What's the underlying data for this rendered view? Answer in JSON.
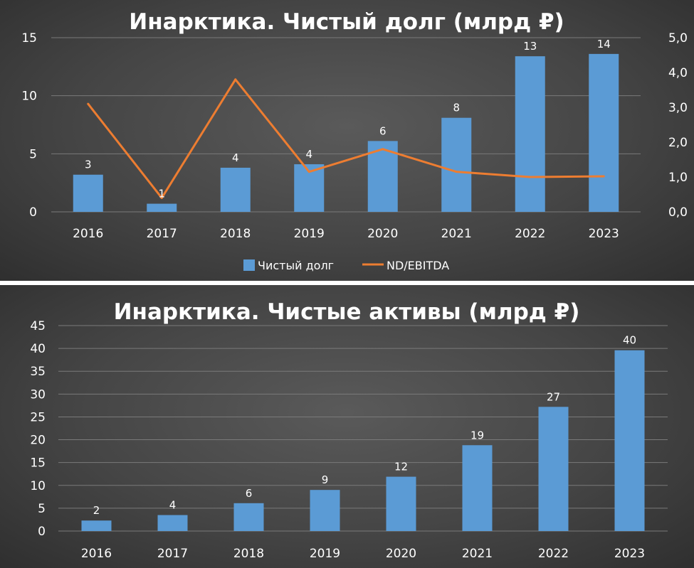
{
  "colors": {
    "bar": "#5b9bd5",
    "line": "#ed7d31",
    "text": "#ffffff",
    "grid": "#7a7a7a"
  },
  "chart_data": [
    {
      "type": "bar",
      "title": "Инарктика. Чистый долг (млрд ₽)",
      "categories": [
        "2016",
        "2017",
        "2018",
        "2019",
        "2020",
        "2021",
        "2022",
        "2023"
      ],
      "series": [
        {
          "name": "Чистый долг",
          "type": "bar",
          "axis": "left",
          "values": [
            3.2,
            0.7,
            3.8,
            4.1,
            6.1,
            8.1,
            13.4,
            13.6
          ],
          "labels": [
            "3",
            "1",
            "4",
            "4",
            "6",
            "8",
            "13",
            "14"
          ]
        },
        {
          "name": "ND/EBITDA",
          "type": "line",
          "axis": "right",
          "values": [
            3.1,
            0.4,
            3.8,
            1.15,
            1.8,
            1.15,
            1.0,
            1.02
          ]
        }
      ],
      "ylim": [
        0,
        15
      ],
      "yticks": [
        "0",
        "5",
        "10",
        "15"
      ],
      "y2lim": [
        0,
        5
      ],
      "y2ticks": [
        "0,0",
        "1,0",
        "2,0",
        "3,0",
        "4,0",
        "5,0"
      ],
      "grid": true,
      "legend_position": "bottom"
    },
    {
      "type": "bar",
      "title": "Инарктика. Чистые активы (млрд ₽)",
      "categories": [
        "2016",
        "2017",
        "2018",
        "2019",
        "2020",
        "2021",
        "2022",
        "2023"
      ],
      "values": [
        2.3,
        3.5,
        6.1,
        9.0,
        11.9,
        18.8,
        27.2,
        39.6
      ],
      "labels": [
        "2",
        "4",
        "6",
        "9",
        "12",
        "19",
        "27",
        "40"
      ],
      "ylim": [
        0,
        45
      ],
      "yticks": [
        "0",
        "5",
        "10",
        "15",
        "20",
        "25",
        "30",
        "35",
        "40",
        "45"
      ],
      "grid": true,
      "legend_position": "none"
    }
  ]
}
